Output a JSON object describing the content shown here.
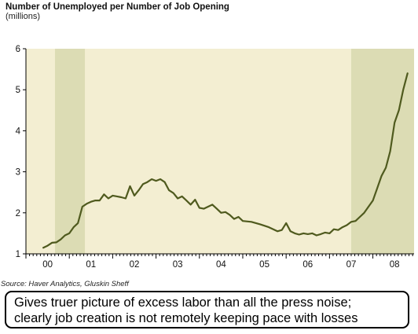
{
  "chart_data": {
    "type": "line",
    "title": "Number of Unemployed per Number of Job Opening",
    "subtitle": "(millions)",
    "source": "Source: Haver Analytics, Gluskin Sheff",
    "x_tick_labels": [
      "00",
      "01",
      "02",
      "03",
      "04",
      "05",
      "06",
      "07",
      "08"
    ],
    "y_ticks": [
      1,
      2,
      3,
      4,
      5,
      6
    ],
    "ylim": [
      1,
      6
    ],
    "xlim": [
      2000.0,
      2008.95
    ],
    "grid": false,
    "colors": {
      "line": "#4f5a1e",
      "plot_background": "#f3eed2",
      "recession_shade": "#dcdcb4"
    },
    "recession_periods": [
      [
        2000.67,
        2001.36
      ],
      [
        2007.5,
        2008.95
      ]
    ],
    "series": [
      {
        "x": [
          2000.4,
          2000.5,
          2000.6,
          2000.7,
          2000.8,
          2000.9,
          2001.0,
          2001.1,
          2001.2,
          2001.3,
          2001.4,
          2001.5,
          2001.6,
          2001.7,
          2001.8,
          2001.9,
          2002.0,
          2002.1,
          2002.2,
          2002.3,
          2002.4,
          2002.5,
          2002.6,
          2002.7,
          2002.8,
          2002.9,
          2003.0,
          2003.1,
          2003.2,
          2003.3,
          2003.4,
          2003.5,
          2003.6,
          2003.7,
          2003.8,
          2003.9,
          2004.0,
          2004.1,
          2004.2,
          2004.3,
          2004.4,
          2004.5,
          2004.6,
          2004.7,
          2004.8,
          2004.9,
          2005.0,
          2005.2,
          2005.4,
          2005.6,
          2005.8,
          2005.9,
          2006.0,
          2006.1,
          2006.2,
          2006.3,
          2006.4,
          2006.5,
          2006.6,
          2006.7,
          2006.8,
          2006.9,
          2007.0,
          2007.1,
          2007.2,
          2007.3,
          2007.4,
          2007.5,
          2007.6,
          2007.7,
          2007.8,
          2007.9,
          2008.0,
          2008.1,
          2008.2,
          2008.3,
          2008.4,
          2008.5,
          2008.6,
          2008.7,
          2008.8
        ],
        "y": [
          1.15,
          1.2,
          1.27,
          1.28,
          1.35,
          1.45,
          1.5,
          1.65,
          1.75,
          2.15,
          2.22,
          2.27,
          2.3,
          2.3,
          2.45,
          2.35,
          2.42,
          2.4,
          2.38,
          2.35,
          2.65,
          2.42,
          2.55,
          2.7,
          2.75,
          2.82,
          2.78,
          2.82,
          2.75,
          2.55,
          2.48,
          2.35,
          2.4,
          2.3,
          2.2,
          2.32,
          2.12,
          2.1,
          2.15,
          2.2,
          2.1,
          2.0,
          2.02,
          1.95,
          1.85,
          1.9,
          1.8,
          1.78,
          1.72,
          1.65,
          1.55,
          1.58,
          1.75,
          1.55,
          1.5,
          1.47,
          1.5,
          1.48,
          1.5,
          1.45,
          1.48,
          1.52,
          1.5,
          1.6,
          1.58,
          1.65,
          1.7,
          1.78,
          1.8,
          1.9,
          2.0,
          2.15,
          2.3,
          2.6,
          2.9,
          3.1,
          3.5,
          4.2,
          4.5,
          5.0,
          5.4
        ]
      }
    ]
  },
  "note": {
    "line1": "Gives truer picture of excess labor than all the press noise;",
    "line2": "clearly job creation is not remotely keeping pace with losses"
  }
}
